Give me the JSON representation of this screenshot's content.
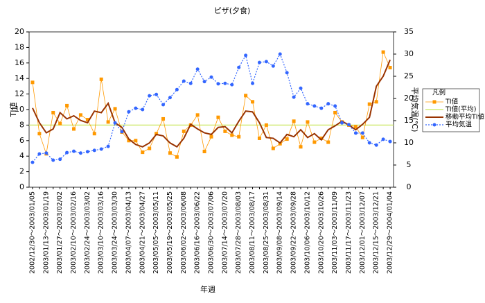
{
  "chart_data": {
    "type": "line",
    "title": "ピザ(夕食)",
    "xlabel": "年週",
    "ylabel": "TI値",
    "y2label": "平均気温(℃)",
    "legend_title": "凡例",
    "legend": "right",
    "categories": [
      "2002/12/30～2003/01/05",
      null,
      "2003/01/13～2003/01/19",
      null,
      "2003/01/27～2003/02/02",
      null,
      "2003/02/10～2003/02/16",
      null,
      "2003/02/24～2003/03/02",
      null,
      "2003/03/10～2003/03/16",
      null,
      "2003/03/24～2003/03/30",
      null,
      "2003/04/07～2003/04/13",
      null,
      "2003/04/21～2003/04/27",
      null,
      "2003/05/05～2003/05/11",
      null,
      "2003/05/19～2003/05/25",
      null,
      "2003/06/02～2003/06/08",
      null,
      "2003/06/16～2003/06/22",
      null,
      "2003/06/30～2003/07/06",
      null,
      "2003/07/14～2003/07/20",
      null,
      "2003/07/28～2003/08/03",
      null,
      "2003/08/11～2003/08/17",
      null,
      "2003/08/25～2003/08/31",
      null,
      "2003/09/08～2003/09/14",
      null,
      "2003/09/22～2003/09/28",
      null,
      "2003/10/06～2003/10/12",
      null,
      "2003/10/20～2003/10/26",
      null,
      "2003/11/03～2003/11/09",
      null,
      "2003/11/17～2003/11/23",
      null,
      "2003/12/01～2003/12/07",
      null,
      "2003/12/15～2003/12/21",
      null,
      "2003/12/29～2004/01/04"
    ],
    "series": [
      {
        "name": "TI値",
        "color": "#ff9900",
        "marker": "square",
        "values": [
          13.5,
          6.9,
          4.3,
          9.6,
          8.2,
          10.5,
          7.5,
          9.3,
          8.7,
          6.9,
          13.9,
          8.4,
          10.1,
          7.1,
          6.0,
          6.0,
          4.5,
          5.0,
          6.9,
          8.8,
          4.4,
          3.9,
          7.2,
          8.0,
          9.3,
          4.6,
          6.5,
          9.0,
          7.2,
          6.7,
          6.5,
          11.8,
          11.0,
          6.3,
          8.0,
          5.0,
          5.6,
          6.2,
          8.5,
          5.2,
          8.4,
          5.8,
          6.3,
          5.8,
          9.6,
          8.4,
          8.0,
          7.8,
          6.4,
          10.7,
          11.0,
          17.4,
          15.4
        ]
      },
      {
        "name": "移動平均TI値",
        "color": "#993300",
        "marker": "none",
        "values": [
          10.2,
          8.3,
          7.0,
          7.5,
          9.6,
          8.8,
          9.2,
          8.6,
          8.3,
          9.8,
          9.6,
          10.8,
          8.3,
          7.7,
          6.2,
          5.5,
          5.2,
          5.7,
          6.8,
          6.6,
          5.7,
          5.2,
          6.3,
          8.1,
          7.5,
          7.0,
          6.8,
          7.7,
          7.8,
          7.0,
          8.5,
          9.8,
          9.7,
          8.3,
          6.4,
          6.3,
          5.7,
          6.8,
          6.5,
          7.4,
          6.4,
          6.9,
          6.1,
          7.4,
          7.9,
          8.5,
          8.0,
          7.4,
          8.1,
          9.0,
          13.0,
          14.3,
          16.4
        ]
      },
      {
        "name": "平均気温",
        "color": "#3366ff",
        "marker": "circle",
        "axis": "y2",
        "values": [
          5.6,
          7.5,
          7.7,
          6.1,
          6.3,
          7.8,
          8.1,
          7.7,
          8.0,
          8.3,
          8.6,
          9.2,
          14.5,
          12.5,
          17.0,
          17.8,
          17.5,
          20.6,
          20.9,
          18.6,
          20.2,
          22.0,
          23.9,
          23.4,
          26.6,
          23.8,
          24.8,
          23.3,
          23.4,
          23.1,
          27.0,
          29.7,
          23.4,
          28.1,
          28.3,
          27.3,
          30.0,
          25.8,
          20.3,
          22.3,
          18.8,
          18.3,
          17.8,
          18.8,
          18.3,
          14.5,
          14.1,
          12.2,
          12.2,
          10.0,
          9.5,
          10.8,
          10.3
        ]
      }
    ],
    "reference_line": {
      "name": "TI値(平均)",
      "color": "#c8e65a",
      "value": 8.0
    },
    "ylim": [
      0,
      20
    ],
    "yticks": [
      0,
      2,
      4,
      6,
      8,
      10,
      12,
      14,
      16,
      18,
      20
    ],
    "y2lim": [
      0,
      35
    ],
    "y2ticks": [
      0,
      5,
      10,
      15,
      20,
      25,
      30,
      35
    ]
  }
}
